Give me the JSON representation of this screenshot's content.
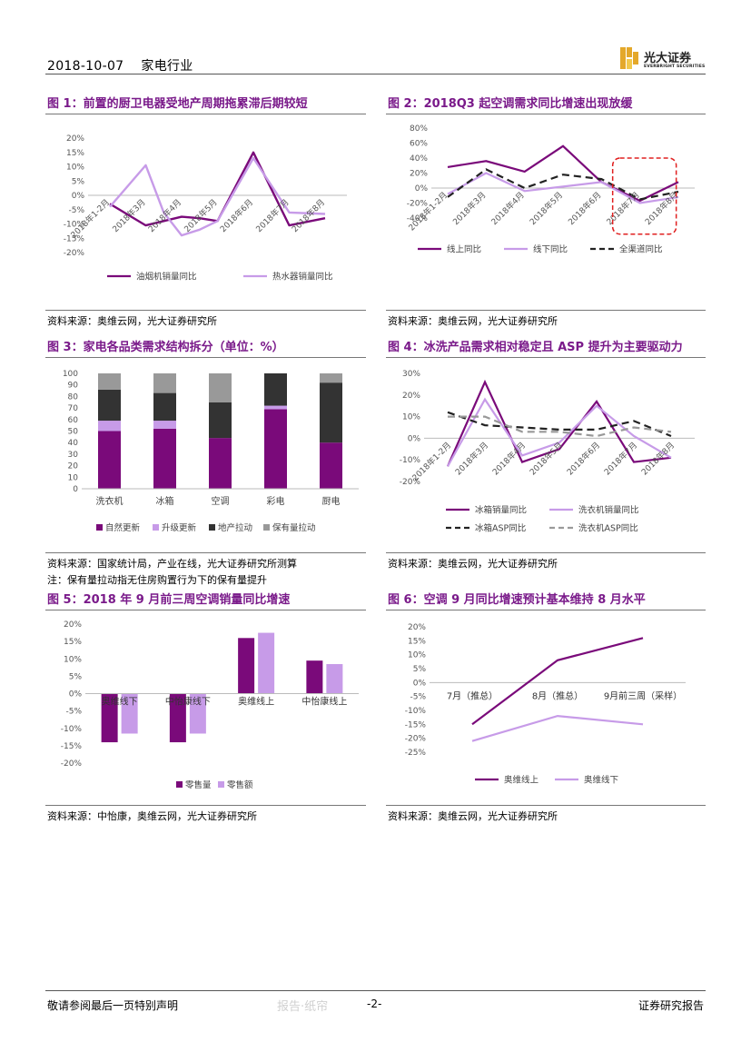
{
  "header": {
    "date": "2018-10-07",
    "industry": "家电行业",
    "logo_cn": "光大证券",
    "logo_en": "EVERBRIGHT SECURITIES"
  },
  "colors": {
    "title": "#7a1a8a",
    "dark": "#7a0a7a",
    "light": "#c79be8",
    "black": "#222222",
    "gray": "#999999"
  },
  "figures": {
    "fig1": {
      "title": "图 1：前置的厨卫电器受地产周期拖累滞后期较短",
      "source": "资料来源：奥维云网，光大证券研究所"
    },
    "fig2": {
      "title": "图 2：2018Q3 起空调需求同比增速出现放缓",
      "source": "资料来源：奥维云网，光大证券研究所"
    },
    "fig3": {
      "title": "图 3：家电各品类需求结构拆分（单位：%）",
      "source": "资料来源：国家统计局，产业在线，光大证券研究所测算",
      "note": "注：保有量拉动指无住房购置行为下的保有量提升"
    },
    "fig4": {
      "title": "图 4：冰洗产品需求相对稳定且 ASP 提升为主要驱动力",
      "source": "资料来源：奥维云网，光大证券研究所"
    },
    "fig5": {
      "title": "图 5：2018 年 9 月前三周空调销量同比增速",
      "source": "资料来源：中怡康，奥维云网，光大证券研究所"
    },
    "fig6": {
      "title": "图 6：空调 9 月同比增速预计基本维持 8 月水平",
      "source": "资料来源：奥维云网，光大证券研究所"
    }
  },
  "chart_data": [
    {
      "id": "fig1",
      "type": "line",
      "categories": [
        "2018年1-2月",
        "2018年3月",
        "2018年4月",
        "2018年5月",
        "2018年6月",
        "2018年7月",
        "2018年8月"
      ],
      "ylim": [
        -20,
        20
      ],
      "yticks": [
        "20%",
        "15%",
        "10%",
        "5%",
        "0%",
        "-5%",
        "-10%",
        "-15%",
        "-20%"
      ],
      "grid": false,
      "series": [
        {
          "name": "油烟机销量同比",
          "color": "#7a0a7a",
          "points": [
            [
              0,
              -3
            ],
            [
              1,
              -10.5
            ],
            [
              1.5,
              -9
            ],
            [
              2,
              -7.5
            ],
            [
              2.5,
              -8
            ],
            [
              3,
              -9
            ],
            [
              4,
              15
            ],
            [
              5,
              -10.5
            ],
            [
              6,
              -8
            ]
          ]
        },
        {
          "name": "热水器销量同比",
          "color": "#c79be8",
          "points": [
            [
              0,
              -4
            ],
            [
              1,
              10.5
            ],
            [
              1.5,
              -6
            ],
            [
              2,
              -14
            ],
            [
              2.5,
              -12
            ],
            [
              3,
              -9
            ],
            [
              4,
              13
            ],
            [
              5,
              -6
            ],
            [
              6,
              -6.5
            ]
          ]
        }
      ]
    },
    {
      "id": "fig2",
      "type": "line",
      "categories": [
        "2018年1-2月",
        "2018年3月",
        "2018年4月",
        "2018年5月",
        "2018年6月",
        "2018年7月",
        "2018年8月"
      ],
      "ylim": [
        -40,
        80
      ],
      "yticks": [
        "80%",
        "60%",
        "40%",
        "20%",
        "0%",
        "-20%",
        "-40%"
      ],
      "series": [
        {
          "name": "线上同比",
          "color": "#7a0a7a",
          "dash": false,
          "values": [
            28,
            36,
            22,
            56,
            8,
            -17,
            8
          ]
        },
        {
          "name": "线下同比",
          "color": "#c79be8",
          "dash": false,
          "values": [
            -8,
            20,
            -4,
            2,
            8,
            -20,
            -12
          ]
        },
        {
          "name": "全渠道同比",
          "color": "#222222",
          "dash": true,
          "values": [
            -12,
            25,
            0,
            18,
            12,
            -15,
            -5
          ]
        }
      ]
    },
    {
      "id": "fig3",
      "type": "bar",
      "categories": [
        "洗衣机",
        "冰箱",
        "空调",
        "彩电",
        "厨电"
      ],
      "ylim": [
        0,
        100
      ],
      "yticks": [
        "100",
        "90",
        "80",
        "70",
        "60",
        "50",
        "40",
        "30",
        "20",
        "10",
        "0"
      ],
      "series": [
        {
          "name": "自然更新",
          "color": "#7a0a7a",
          "values": [
            50,
            52,
            44,
            69,
            40
          ]
        },
        {
          "name": "升级更新",
          "color": "#c79be8",
          "values": [
            9,
            7,
            0,
            3,
            0
          ]
        },
        {
          "name": "地产拉动",
          "color": "#333333",
          "values": [
            27,
            24,
            31,
            28,
            52
          ]
        },
        {
          "name": "保有量拉动",
          "color": "#999999",
          "values": [
            14,
            17,
            25,
            0,
            8
          ]
        }
      ]
    },
    {
      "id": "fig4",
      "type": "line",
      "categories": [
        "2018年1-2月",
        "2018年3月",
        "2018年4月",
        "2018年5月",
        "2018年6月",
        "2018年7月",
        "2018年8月"
      ],
      "ylim": [
        -20,
        30
      ],
      "yticks": [
        "30%",
        "20%",
        "10%",
        "0%",
        "-10%",
        "-20%"
      ],
      "series": [
        {
          "name": "冰箱销量同比",
          "color": "#7a0a7a",
          "dash": false,
          "values": [
            -13,
            26,
            -11,
            -5,
            17,
            -11,
            -9
          ]
        },
        {
          "name": "洗衣机销量同比",
          "color": "#c79be8",
          "dash": false,
          "values": [
            -13,
            18,
            -8,
            -2,
            15,
            1,
            -9
          ]
        },
        {
          "name": "冰箱ASP同比",
          "color": "#222222",
          "dash": true,
          "values": [
            12,
            6,
            5,
            4,
            4,
            8,
            1
          ]
        },
        {
          "name": "洗衣机ASP同比",
          "color": "#999999",
          "dash": true,
          "values": [
            10,
            10,
            3,
            3,
            1,
            5,
            3
          ]
        }
      ]
    },
    {
      "id": "fig5",
      "type": "bar",
      "categories": [
        "奥维线下",
        "中怡康线下",
        "奥维线上",
        "中怡康线上"
      ],
      "ylim": [
        -20,
        20
      ],
      "yticks": [
        "20%",
        "15%",
        "10%",
        "5%",
        "0%",
        "-5%",
        "-10%",
        "-15%",
        "-20%"
      ],
      "series": [
        {
          "name": "零售量",
          "color": "#7a0a7a",
          "values": [
            -14,
            -14,
            16,
            9.5
          ]
        },
        {
          "name": "零售额",
          "color": "#c79be8",
          "values": [
            -11.5,
            -11.5,
            17.5,
            8.5
          ]
        }
      ]
    },
    {
      "id": "fig6",
      "type": "line",
      "categories": [
        "7月（推总）",
        "8月（推总）",
        "9月前三周（采样）"
      ],
      "ylim": [
        -25,
        20
      ],
      "yticks": [
        "20%",
        "15%",
        "10%",
        "5%",
        "0%",
        "-5%",
        "-10%",
        "-15%",
        "-20%",
        "-25%"
      ],
      "series": [
        {
          "name": "奥维线上",
          "color": "#7a0a7a",
          "values": [
            -15,
            8,
            16
          ]
        },
        {
          "name": "奥维线下",
          "color": "#c79be8",
          "values": [
            -21,
            -12,
            -15
          ]
        }
      ]
    }
  ],
  "footer": {
    "disclaimer": "敬请参阅最后一页特别声明",
    "page": "-2-",
    "report_type": "证券研究报告",
    "watermark": "报告·纸帘"
  }
}
